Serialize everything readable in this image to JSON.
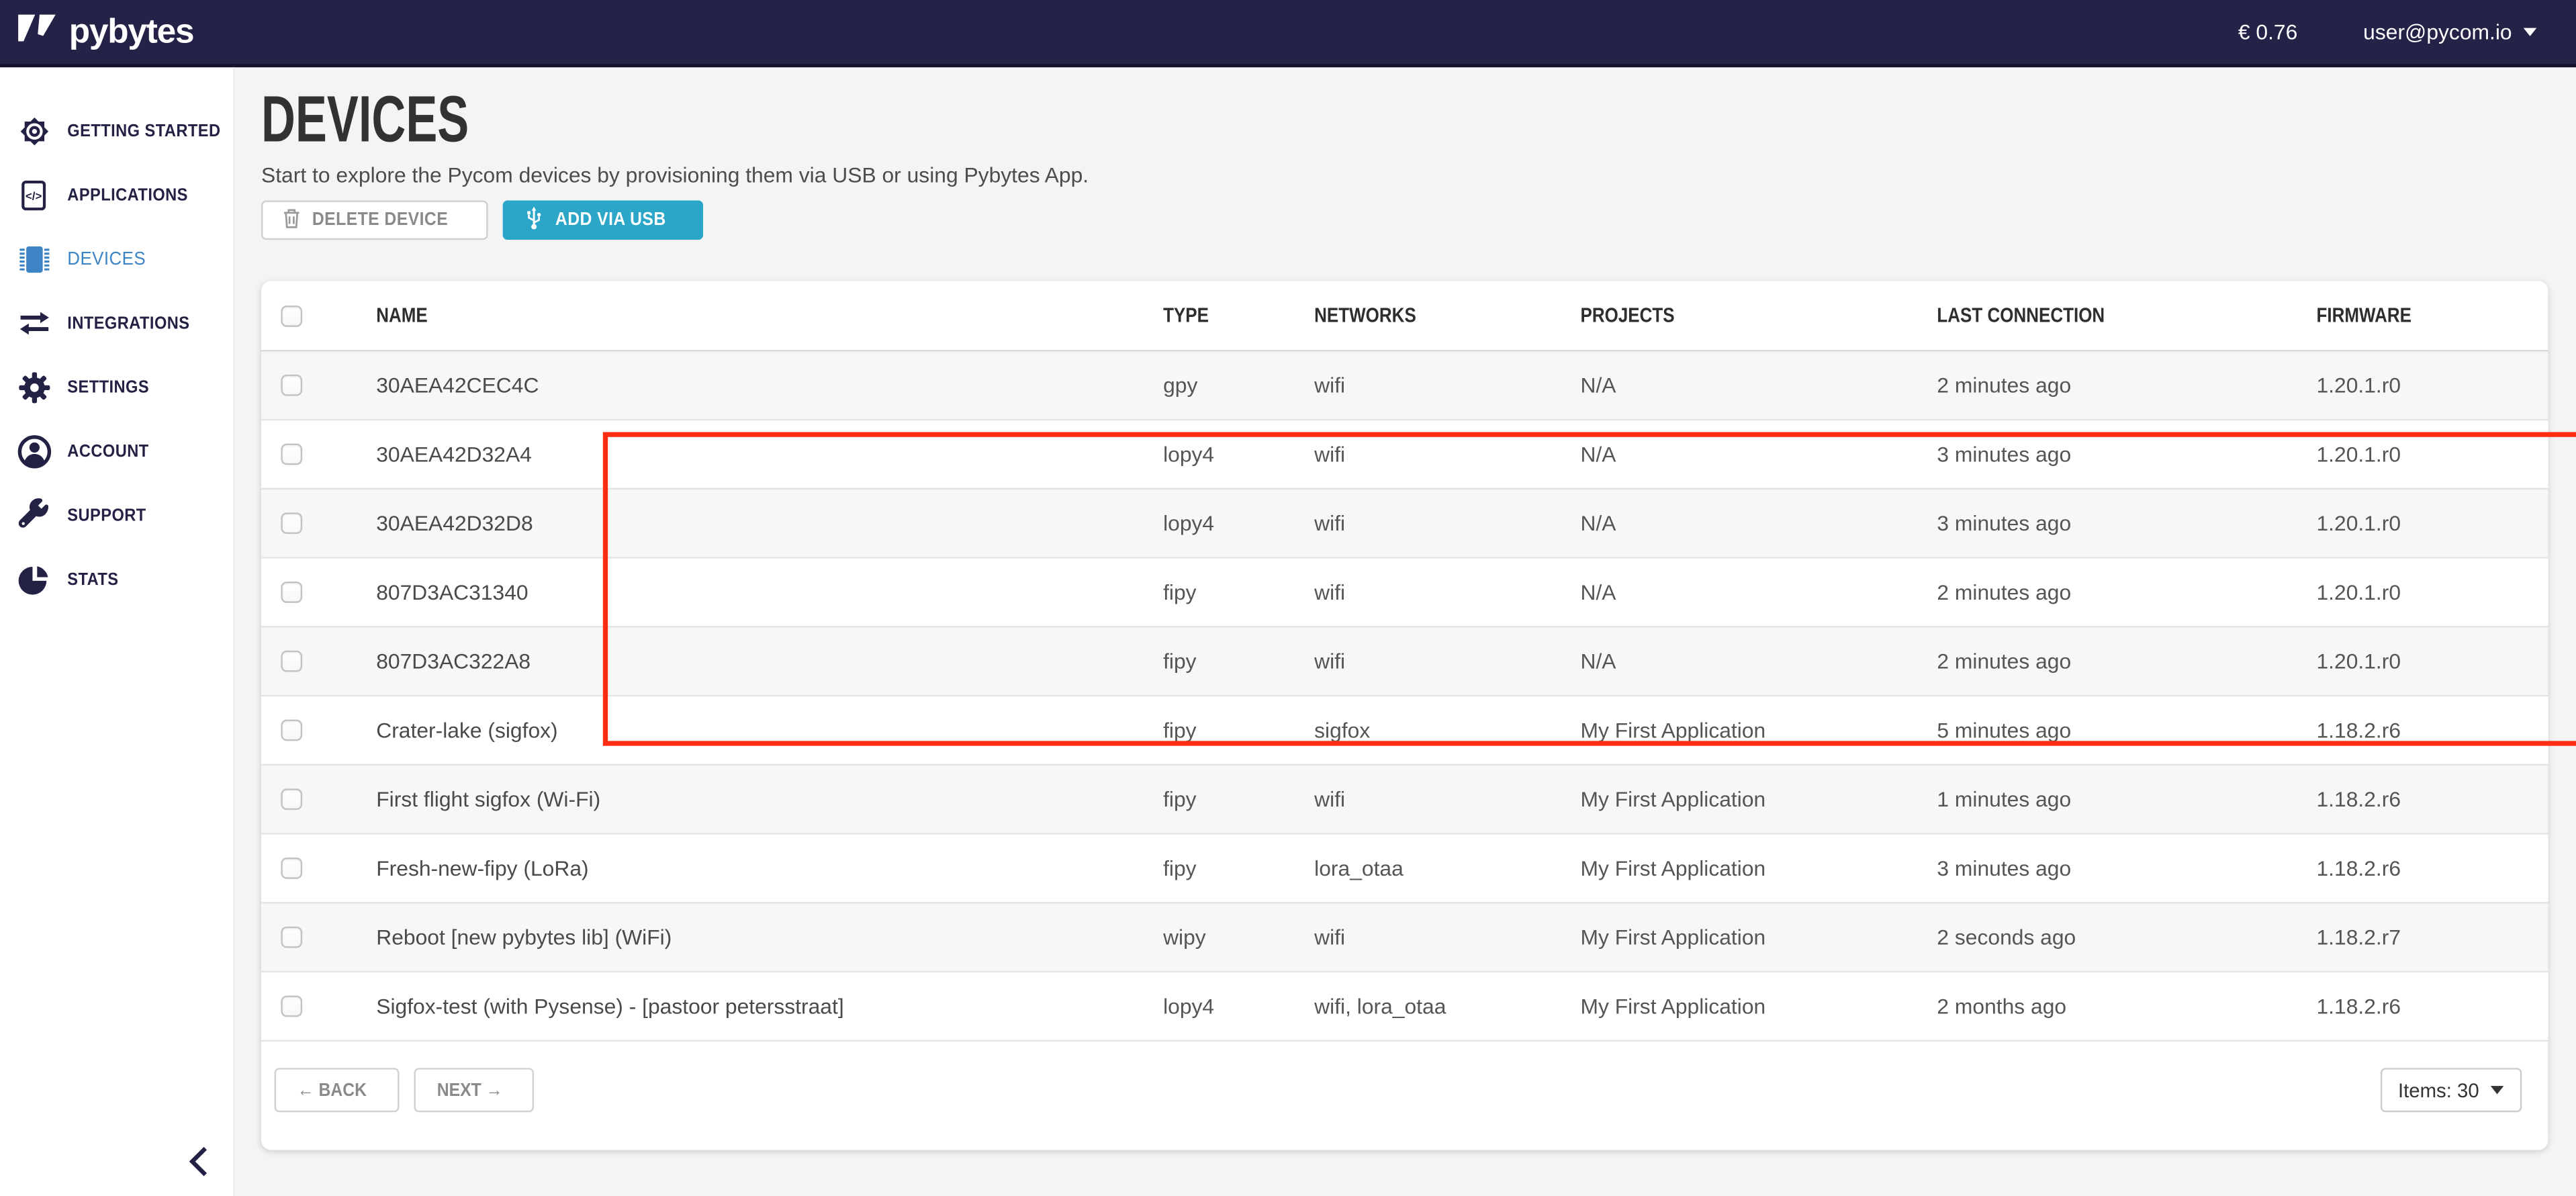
{
  "topbar": {
    "brand": "pybytes",
    "balance": "€ 0.76",
    "user_email": "user@pycom.io"
  },
  "sidebar": {
    "items": [
      {
        "label": "GETTING STARTED",
        "icon": "sun-icon",
        "active": false
      },
      {
        "label": "APPLICATIONS",
        "icon": "code-file-icon",
        "active": false
      },
      {
        "label": "DEVICES",
        "icon": "chip-icon",
        "active": true
      },
      {
        "label": "INTEGRATIONS",
        "icon": "arrows-swap-icon",
        "active": false
      },
      {
        "label": "SETTINGS",
        "icon": "gear-icon",
        "active": false
      },
      {
        "label": "ACCOUNT",
        "icon": "user-icon",
        "active": false
      },
      {
        "label": "SUPPORT",
        "icon": "wrench-icon",
        "active": false
      },
      {
        "label": "STATS",
        "icon": "pie-chart-icon",
        "active": false
      }
    ],
    "active_color": "#3d84c4",
    "inactive_color": "#232144"
  },
  "page": {
    "title": "DEVICES",
    "subtitle": "Start to explore the Pycom devices by provisioning them via USB or using Pybytes App."
  },
  "toolbar": {
    "delete_label": "DELETE DEVICE",
    "add_label": "ADD VIA USB",
    "add_color": "#2ba6c8"
  },
  "table": {
    "columns": [
      "NAME",
      "TYPE",
      "NETWORKS",
      "PROJECTS",
      "LAST CONNECTION",
      "FIRMWARE"
    ],
    "highlight_border_color": "#ff2d11",
    "rows": [
      {
        "name": "30AEA42CEC4C",
        "type": "gpy",
        "networks": "wifi",
        "projects": "N/A",
        "last_connection": "2 minutes ago",
        "firmware": "1.20.1.r0",
        "highlighted": true
      },
      {
        "name": "30AEA42D32A4",
        "type": "lopy4",
        "networks": "wifi",
        "projects": "N/A",
        "last_connection": "3 minutes ago",
        "firmware": "1.20.1.r0",
        "highlighted": true
      },
      {
        "name": "30AEA42D32D8",
        "type": "lopy4",
        "networks": "wifi",
        "projects": "N/A",
        "last_connection": "3 minutes ago",
        "firmware": "1.20.1.r0",
        "highlighted": true
      },
      {
        "name": "807D3AC31340",
        "type": "fipy",
        "networks": "wifi",
        "projects": "N/A",
        "last_connection": "2 minutes ago",
        "firmware": "1.20.1.r0",
        "highlighted": true
      },
      {
        "name": "807D3AC322A8",
        "type": "fipy",
        "networks": "wifi",
        "projects": "N/A",
        "last_connection": "2 minutes ago",
        "firmware": "1.20.1.r0",
        "highlighted": true
      },
      {
        "name": "Crater-lake (sigfox)",
        "type": "fipy",
        "networks": "sigfox",
        "projects": "My First Application",
        "last_connection": "5 minutes ago",
        "firmware": "1.18.2.r6",
        "highlighted": false
      },
      {
        "name": "First flight sigfox (Wi-Fi)",
        "type": "fipy",
        "networks": "wifi",
        "projects": "My First Application",
        "last_connection": "1 minutes ago",
        "firmware": "1.18.2.r6",
        "highlighted": false
      },
      {
        "name": "Fresh-new-fipy (LoRa)",
        "type": "fipy",
        "networks": "lora_otaa",
        "projects": "My First Application",
        "last_connection": "3 minutes ago",
        "firmware": "1.18.2.r6",
        "highlighted": false
      },
      {
        "name": "Reboot [new pybytes lib] (WiFi)",
        "type": "wipy",
        "networks": "wifi",
        "projects": "My First Application",
        "last_connection": "2 seconds ago",
        "firmware": "1.18.2.r7",
        "highlighted": false
      },
      {
        "name": "Sigfox-test (with Pysense) - [pastoor petersstraat]",
        "type": "lopy4",
        "networks": "wifi, lora_otaa",
        "projects": "My First Application",
        "last_connection": "2 months ago",
        "firmware": "1.18.2.r6",
        "highlighted": false
      }
    ]
  },
  "pagination": {
    "back_label": "← BACK",
    "next_label": "NEXT →",
    "items_label": "Items: 30"
  }
}
